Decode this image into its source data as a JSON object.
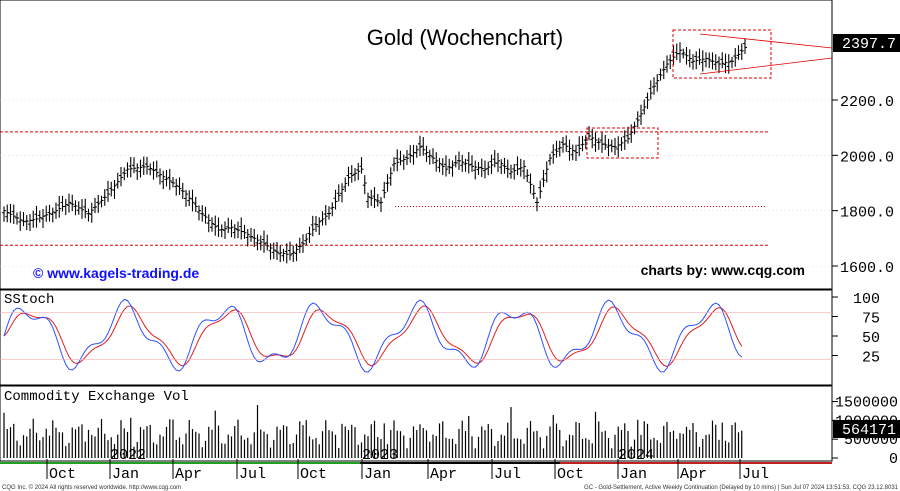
{
  "chart_data": [
    {
      "type": "candlestick",
      "title": "Gold (Wochenchart)",
      "watermark_left": "© www.kagels-trading.de",
      "watermark_right": "charts by: www.cqg.com",
      "last_price_label": "2397.7",
      "y_ticks": [
        "2200.0",
        "2000.0",
        "1800.0",
        "1600.0"
      ],
      "y_tick_values": [
        2200,
        2000,
        1800,
        1600
      ],
      "ylim": [
        1540,
        2500
      ],
      "support_resistance_lines": [
        {
          "value": 2085,
          "style": "dashed",
          "color": "#e00000"
        },
        {
          "value": 1815,
          "style": "dotted",
          "color": "#e00000"
        },
        {
          "value": 1675,
          "style": "dashed",
          "color": "#e00000"
        }
      ],
      "weekly_bars_sample": [
        {
          "date": "2021-09",
          "low": 1720,
          "high": 1830,
          "close": 1760
        },
        {
          "date": "2022-03",
          "low": 1900,
          "high": 2070,
          "close": 1960
        },
        {
          "date": "2022-09",
          "low": 1615,
          "high": 1690,
          "close": 1650
        },
        {
          "date": "2023-05",
          "low": 1950,
          "high": 2080,
          "close": 2010
        },
        {
          "date": "2023-10",
          "low": 1810,
          "high": 1900,
          "close": 1850
        },
        {
          "date": "2023-12",
          "low": 2000,
          "high": 2150,
          "close": 2060
        },
        {
          "date": "2024-04",
          "low": 2280,
          "high": 2430,
          "close": 2330
        },
        {
          "date": "2024-07",
          "low": 2330,
          "high": 2400,
          "close": 2397.7
        }
      ]
    },
    {
      "type": "line",
      "title": "SStoch",
      "y_ticks": [
        "100",
        "75",
        "50",
        "25"
      ],
      "y_tick_values": [
        100,
        75,
        50,
        25
      ],
      "ylim": [
        0,
        105
      ],
      "series": [
        {
          "color": "#3050ff"
        },
        {
          "color": "#e02020"
        }
      ]
    },
    {
      "type": "bar",
      "title": "Commodity Exchange Vol",
      "y_ticks": [
        "1500000",
        "1000000",
        "500000",
        "0"
      ],
      "y_tick_values": [
        1500000,
        1000000,
        500000,
        0
      ],
      "last_value_label": "564171",
      "ylim": [
        0,
        1700000
      ]
    }
  ],
  "x_axis": {
    "month_labels": [
      "Oct",
      "Jan",
      "Apr",
      "Jul",
      "Oct",
      "Jan",
      "Apr",
      "Jul",
      "Oct",
      "Jan",
      "Apr",
      "Jul"
    ],
    "year_labels": [
      "2022",
      "2023",
      "2024"
    ]
  },
  "footer": {
    "left": "CQG Inc. © 2024 All rights reserved worldwide. http://www.cqg.com",
    "right": "GC - Gold-Settlement, Active Weekly Continuation (Delayed by 10 mins) | Sun Jul 07 2024 13:51:53, CQG 23.12.8031"
  },
  "colors": {
    "candle": "#000000",
    "level_line": "#e00000",
    "stoch_k": "#3050ff",
    "stoch_d": "#e02020",
    "label_box": "#000000",
    "watermark": "#1010ff"
  }
}
